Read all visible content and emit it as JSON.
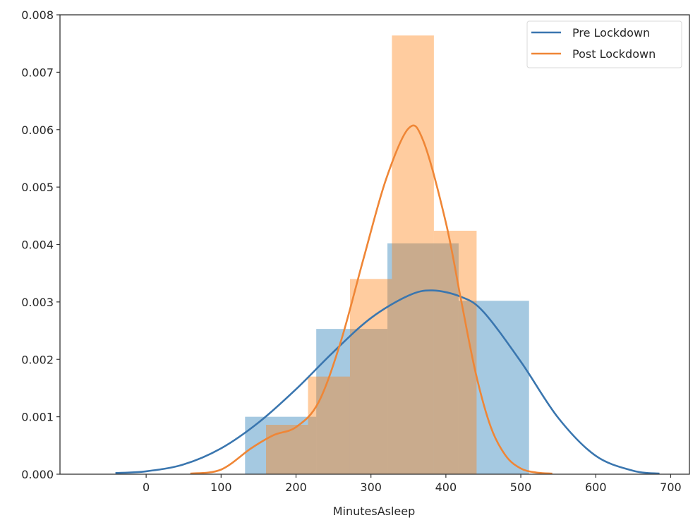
{
  "chart_data": {
    "type": "histogram+kde",
    "title": "",
    "xlabel": "MinutesAsleep",
    "ylabel": "",
    "xlim": [
      -115,
      725
    ],
    "ylim": [
      0.0,
      0.008
    ],
    "xticks": [
      0,
      100,
      200,
      300,
      400,
      500,
      600,
      700
    ],
    "xtick_labels": [
      "0",
      "100",
      "200",
      "300",
      "400",
      "500",
      "600",
      "700"
    ],
    "yticks": [
      0.0,
      0.001,
      0.002,
      0.003,
      0.004,
      0.005,
      0.006,
      0.007,
      0.008
    ],
    "ytick_labels": [
      "0.000",
      "0.001",
      "0.002",
      "0.003",
      "0.004",
      "0.005",
      "0.006",
      "0.007",
      "0.008"
    ],
    "grid": false,
    "legend_position": "upper right",
    "series": [
      {
        "name": "Pre Lockdown",
        "color": "#3a76af",
        "bar_color": "#a9c5de",
        "histogram": {
          "bin_edges": [
            132,
            227,
            322,
            417,
            511
          ],
          "densities": [
            0.001,
            0.00253,
            0.00402,
            0.00302
          ]
        },
        "kde": {
          "x": [
            -41,
            0,
            50,
            100,
            150,
            200,
            250,
            300,
            350,
            382,
            420,
            450,
            500,
            550,
            600,
            650,
            685
          ],
          "y": [
            2e-05,
            5e-05,
            0.00017,
            0.00045,
            0.0009,
            0.00148,
            0.00213,
            0.00272,
            0.00311,
            0.0032,
            0.00309,
            0.00283,
            0.00196,
            0.00098,
            0.00032,
            6e-05,
            1e-05
          ]
        }
      },
      {
        "name": "Post Lockdown",
        "color": "#ef8636",
        "bar_color": "#f6c9a1",
        "histogram": {
          "bin_edges": [
            160,
            216,
            272,
            328,
            384,
            441
          ],
          "densities": [
            0.00086,
            0.0017,
            0.0034,
            0.00764,
            0.00424
          ]
        },
        "kde": {
          "x": [
            59,
            100,
            140,
            170,
            200,
            230,
            260,
            290,
            320,
            350,
            370,
            400,
            420,
            440,
            460,
            480,
            500,
            520,
            542
          ],
          "y": [
            1e-05,
            8e-05,
            0.00045,
            0.00068,
            0.00082,
            0.00125,
            0.00232,
            0.00375,
            0.00513,
            0.00602,
            0.0058,
            0.00438,
            0.00305,
            0.00175,
            0.00082,
            0.00032,
            0.0001,
            3e-05,
            1e-05
          ]
        }
      }
    ]
  },
  "legend": {
    "items": [
      {
        "label": "Pre Lockdown",
        "color": "#3a76af"
      },
      {
        "label": "Post Lockdown",
        "color": "#ef8636"
      }
    ]
  },
  "axes": {
    "xlabel": "MinutesAsleep"
  },
  "colors": {
    "axis": "#333333",
    "text": "#262626",
    "overlap": "#c4a98d"
  }
}
